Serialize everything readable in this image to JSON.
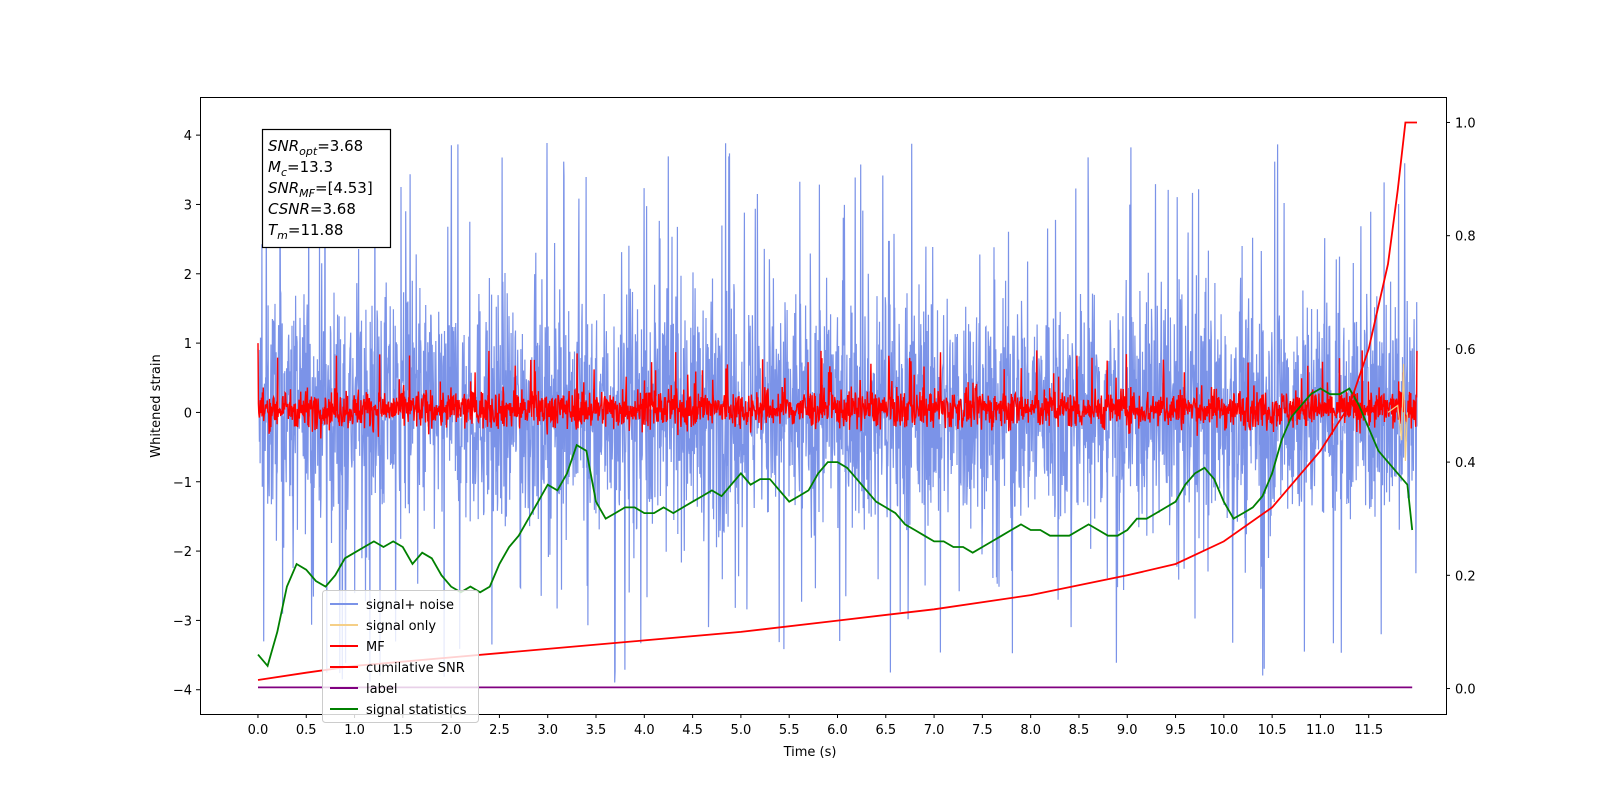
{
  "chart_data": {
    "type": "line",
    "xlabel": "Time (s)",
    "ylabel": "Whitened strain",
    "xlim": [
      -0.6,
      12.3
    ],
    "ylim": [
      -4.35,
      4.55
    ],
    "y2lim": [
      -0.045,
      1.045
    ],
    "x_ticks": [
      "0.0",
      "0.5",
      "1.0",
      "1.5",
      "2.0",
      "2.5",
      "3.0",
      "3.5",
      "4.0",
      "4.5",
      "5.0",
      "5.5",
      "6.0",
      "6.5",
      "7.0",
      "7.5",
      "8.0",
      "8.5",
      "9.0",
      "9.5",
      "10.0",
      "10.5",
      "11.0",
      "11.5"
    ],
    "y_ticks": [
      "4",
      "3",
      "2",
      "1",
      "0",
      "−1",
      "−2",
      "−3",
      "−4"
    ],
    "y2_ticks": [
      "1.0",
      "0.8",
      "0.6",
      "0.4",
      "0.2",
      "0.0"
    ],
    "info_box": {
      "lines": [
        {
          "sym": "SNR",
          "sub": "opt",
          "val": "=3.68"
        },
        {
          "sym": "M",
          "sub": "c",
          "val": "=13.3"
        },
        {
          "sym": "SNR",
          "sub": "MF",
          "val": "=[4.53]"
        },
        {
          "sym": "CSNR",
          "sub": "",
          "val": "=3.68"
        },
        {
          "sym": "T",
          "sub": "m",
          "val": "=11.88"
        }
      ]
    },
    "legend": {
      "location": "lower-left",
      "entries": [
        {
          "label": "signal+ noise",
          "color": "#7b93e8"
        },
        {
          "label": "signal only",
          "color": "#f5cf87"
        },
        {
          "label": "MF",
          "color": "#ff0000"
        },
        {
          "label": "cumilative SNR",
          "color": "#ff0000"
        },
        {
          "label": "label",
          "color": "#800080"
        },
        {
          "label": "signal statistics",
          "color": "#008000"
        }
      ]
    },
    "series": [
      {
        "name": "signal+ noise",
        "color": "#7b93e8",
        "axis": "left",
        "envelope": {
          "typical": [
            -2.0,
            2.2
          ],
          "extremes": [
            -3.9,
            4.1
          ]
        }
      },
      {
        "name": "signal only",
        "color": "#f5cf87",
        "axis": "left",
        "note": "near zero, visible spike near 11.85 s"
      },
      {
        "name": "MF",
        "color": "#ff0000",
        "axis": "left",
        "envelope": {
          "typical": [
            -0.35,
            0.45
          ],
          "extremes": [
            -0.4,
            1.0
          ]
        }
      },
      {
        "name": "cumilative SNR",
        "color": "#ff0000",
        "axis": "right",
        "x": [
          0.0,
          0.5,
          1.0,
          2.0,
          3.0,
          4.0,
          5.0,
          6.0,
          7.0,
          8.0,
          9.0,
          9.5,
          10.0,
          10.5,
          11.0,
          11.3,
          11.5,
          11.7,
          11.8,
          11.88,
          11.88,
          12.0
        ],
        "y": [
          0.015,
          0.028,
          0.04,
          0.055,
          0.07,
          0.085,
          0.1,
          0.12,
          0.14,
          0.165,
          0.2,
          0.22,
          0.26,
          0.32,
          0.42,
          0.5,
          0.6,
          0.75,
          0.88,
          1.0,
          1.0,
          1.0
        ]
      },
      {
        "name": "label",
        "color": "#800080",
        "axis": "right",
        "x": [
          0.0,
          11.95
        ],
        "y": [
          0.002,
          0.002
        ]
      },
      {
        "name": "signal statistics",
        "color": "#008000",
        "axis": "right",
        "x": [
          0.0,
          0.1,
          0.2,
          0.3,
          0.4,
          0.5,
          0.6,
          0.7,
          0.8,
          0.9,
          1.0,
          1.1,
          1.2,
          1.3,
          1.4,
          1.5,
          1.6,
          1.7,
          1.8,
          1.9,
          2.0,
          2.1,
          2.2,
          2.3,
          2.4,
          2.5,
          2.6,
          2.7,
          2.8,
          2.9,
          3.0,
          3.1,
          3.2,
          3.3,
          3.4,
          3.5,
          3.6,
          3.7,
          3.8,
          3.9,
          4.0,
          4.1,
          4.2,
          4.3,
          4.4,
          4.5,
          4.6,
          4.7,
          4.8,
          4.9,
          5.0,
          5.1,
          5.2,
          5.3,
          5.4,
          5.5,
          5.6,
          5.7,
          5.8,
          5.9,
          6.0,
          6.1,
          6.2,
          6.3,
          6.4,
          6.5,
          6.6,
          6.7,
          6.8,
          6.9,
          7.0,
          7.1,
          7.2,
          7.3,
          7.4,
          7.5,
          7.6,
          7.7,
          7.8,
          7.9,
          8.0,
          8.1,
          8.2,
          8.3,
          8.4,
          8.5,
          8.6,
          8.7,
          8.8,
          8.9,
          9.0,
          9.1,
          9.2,
          9.3,
          9.4,
          9.5,
          9.6,
          9.7,
          9.8,
          9.9,
          10.0,
          10.1,
          10.2,
          10.3,
          10.4,
          10.5,
          10.6,
          10.7,
          10.8,
          10.9,
          11.0,
          11.1,
          11.2,
          11.3,
          11.4,
          11.5,
          11.6,
          11.7,
          11.8,
          11.9,
          11.95
        ],
        "y": [
          0.06,
          0.04,
          0.1,
          0.18,
          0.22,
          0.21,
          0.19,
          0.18,
          0.2,
          0.23,
          0.24,
          0.25,
          0.26,
          0.25,
          0.26,
          0.25,
          0.22,
          0.24,
          0.23,
          0.2,
          0.18,
          0.17,
          0.18,
          0.17,
          0.18,
          0.22,
          0.25,
          0.27,
          0.3,
          0.33,
          0.36,
          0.35,
          0.38,
          0.43,
          0.42,
          0.33,
          0.3,
          0.31,
          0.32,
          0.32,
          0.31,
          0.31,
          0.32,
          0.31,
          0.32,
          0.33,
          0.34,
          0.35,
          0.34,
          0.36,
          0.38,
          0.36,
          0.37,
          0.37,
          0.35,
          0.33,
          0.34,
          0.35,
          0.38,
          0.4,
          0.4,
          0.39,
          0.37,
          0.35,
          0.33,
          0.32,
          0.31,
          0.29,
          0.28,
          0.27,
          0.26,
          0.26,
          0.25,
          0.25,
          0.24,
          0.25,
          0.26,
          0.27,
          0.28,
          0.29,
          0.28,
          0.28,
          0.27,
          0.27,
          0.27,
          0.28,
          0.29,
          0.28,
          0.27,
          0.27,
          0.28,
          0.3,
          0.3,
          0.31,
          0.32,
          0.33,
          0.36,
          0.38,
          0.39,
          0.37,
          0.33,
          0.3,
          0.31,
          0.32,
          0.34,
          0.38,
          0.44,
          0.48,
          0.5,
          0.52,
          0.53,
          0.52,
          0.52,
          0.53,
          0.5,
          0.46,
          0.42,
          0.4,
          0.38,
          0.36,
          0.28
        ]
      }
    ]
  }
}
